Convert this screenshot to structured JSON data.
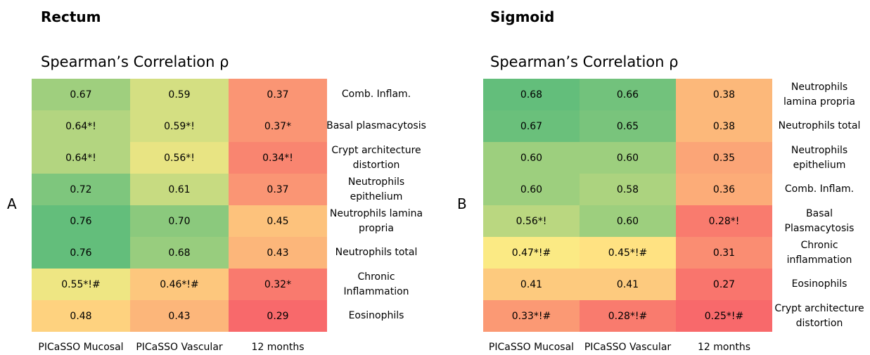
{
  "chart_data": [
    {
      "type": "heatmap",
      "panel_label": "A",
      "title": "Rectum",
      "subtitle": "Spearman’s Correlation ρ",
      "colorscale": [
        "#f8696b",
        "#ffeb84",
        "#63be7b"
      ],
      "x": [
        "PICaSSO Mucosal",
        "PICaSSO Vascular",
        "12 months"
      ],
      "y": [
        "Comb. Inflam.",
        "Basal plasmacytosis",
        "Crypt architecture distortion",
        "Neutrophils epithelium",
        "Neutrophils lamina propria",
        "Neutrophils total",
        "Chronic Inflammation",
        "Eosinophils"
      ],
      "values": [
        [
          0.67,
          0.59,
          0.37
        ],
        [
          0.64,
          0.59,
          0.37
        ],
        [
          0.64,
          0.56,
          0.34
        ],
        [
          0.72,
          0.61,
          0.37
        ],
        [
          0.76,
          0.7,
          0.45
        ],
        [
          0.76,
          0.68,
          0.43
        ],
        [
          0.55,
          0.46,
          0.32
        ],
        [
          0.48,
          0.43,
          0.29
        ]
      ],
      "value_labels": [
        [
          "0.67",
          "0.59",
          "0.37"
        ],
        [
          "0.64*!",
          "0.59*!",
          "0.37*"
        ],
        [
          "0.64*!",
          "0.56*!",
          "0.34*!"
        ],
        [
          "0.72",
          "0.61",
          "0.37"
        ],
        [
          "0.76",
          "0.70",
          "0.45"
        ],
        [
          "0.76",
          "0.68",
          "0.43"
        ],
        [
          "0.55*!#",
          "0.46*!#",
          "0.32*"
        ],
        [
          "0.48",
          "0.43",
          "0.29"
        ]
      ]
    },
    {
      "type": "heatmap",
      "panel_label": "B",
      "title": "Sigmoid",
      "subtitle": "Spearman’s Correlation ρ",
      "colorscale": [
        "#f8696b",
        "#ffeb84",
        "#63be7b"
      ],
      "x": [
        "PICaSSO Mucosal",
        "PICaSSO Vascular",
        "12 months"
      ],
      "y": [
        "Neutrophils lamina propria",
        "Neutrophils total",
        "Neutrophils epithelium",
        "Comb. Inflam.",
        "Basal Plasmacytosis",
        "Chronic inflammation",
        "Eosinophils",
        "Crypt architecture distortion"
      ],
      "values": [
        [
          0.68,
          0.66,
          0.38
        ],
        [
          0.67,
          0.65,
          0.38
        ],
        [
          0.6,
          0.6,
          0.35
        ],
        [
          0.6,
          0.58,
          0.36
        ],
        [
          0.56,
          0.6,
          0.28
        ],
        [
          0.47,
          0.45,
          0.31
        ],
        [
          0.41,
          0.41,
          0.27
        ],
        [
          0.33,
          0.28,
          0.25
        ]
      ],
      "value_labels": [
        [
          "0.68",
          "0.66",
          "0.38"
        ],
        [
          "0.67",
          "0.65",
          "0.38"
        ],
        [
          "0.60",
          "0.60",
          "0.35"
        ],
        [
          "0.60",
          "0.58",
          "0.36"
        ],
        [
          "0.56*!",
          "0.60",
          "0.28*!"
        ],
        [
          "0.47*!#",
          "0.45*!#",
          "0.31"
        ],
        [
          "0.41",
          "0.41",
          "0.27"
        ],
        [
          "0.33*!#",
          "0.28*!#",
          "0.25*!#"
        ]
      ]
    }
  ]
}
